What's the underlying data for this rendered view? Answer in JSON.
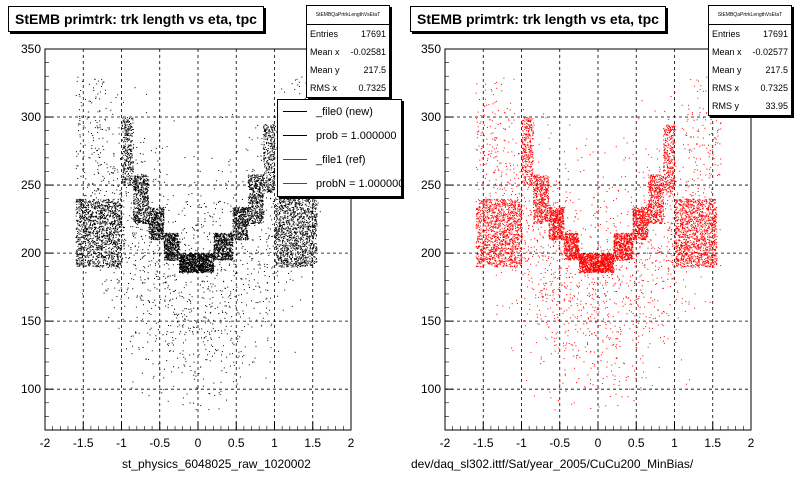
{
  "chart_data": [
    {
      "type": "scatter",
      "title": "StEMB primtrk: trk length vs eta, tpc",
      "xlabel": "st_physics_6048025_raw_1020002",
      "ylabel": "",
      "xlim": [
        -2,
        2
      ],
      "ylim": [
        70,
        350
      ],
      "xticks": [
        "-2",
        "-1.5",
        "-1",
        "-0.5",
        "0",
        "0.5",
        "1",
        "1.5",
        "2"
      ],
      "yticks": [
        "100",
        "150",
        "200",
        "250",
        "300",
        "350"
      ],
      "grid": true,
      "marker_color": "#000000",
      "stats": {
        "name": "StEMBQaPrtrkLengthVsEtaT",
        "rows": [
          {
            "label": "Entries",
            "value": "17691"
          },
          {
            "label": "Mean x",
            "value": "-0.02581"
          },
          {
            "label": "Mean y",
            "value": "217.5"
          },
          {
            "label": "RMS x",
            "value": "0.7325"
          }
        ]
      },
      "legend": [
        {
          "label": "_file0 (new)",
          "color": "#000000"
        },
        {
          "label": "prob = 1.000000",
          "color": "#000000"
        },
        {
          "label": "_file1 (ref)",
          "color": "#ff0000"
        },
        {
          "label": "probN = 1.000000",
          "color": "#ff0000"
        }
      ],
      "legend_position": "top-right",
      "band_profile": [
        {
          "x": [
            -1.6,
            -1.0
          ],
          "y_center": 215,
          "y_half_width": 25
        },
        {
          "x": [
            -1.0,
            -0.85
          ],
          "y_center": 275,
          "y_half_width": 25
        },
        {
          "x": [
            -0.85,
            -0.65
          ],
          "y_center": 240,
          "y_half_width": 18
        },
        {
          "x": [
            -0.65,
            -0.45
          ],
          "y_center": 222,
          "y_half_width": 12
        },
        {
          "x": [
            -0.45,
            -0.25
          ],
          "y_center": 205,
          "y_half_width": 10
        },
        {
          "x": [
            -0.25,
            0.2
          ],
          "y_center": 193,
          "y_half_width": 7
        },
        {
          "x": [
            0.2,
            0.45
          ],
          "y_center": 205,
          "y_half_width": 10
        },
        {
          "x": [
            0.45,
            0.65
          ],
          "y_center": 222,
          "y_half_width": 12
        },
        {
          "x": [
            0.65,
            0.85
          ],
          "y_center": 240,
          "y_half_width": 18
        },
        {
          "x": [
            0.85,
            1.0
          ],
          "y_center": 270,
          "y_half_width": 25
        },
        {
          "x": [
            1.0,
            1.55
          ],
          "y_center": 215,
          "y_half_width": 25
        }
      ],
      "entries": 17691
    },
    {
      "type": "scatter",
      "title": "StEMB primtrk: trk length vs eta, tpc",
      "xlabel": "dev/daq_sl302.ittf/Sat/year_2005/CuCu200_MinBias/",
      "ylabel": "",
      "xlim": [
        -2,
        2
      ],
      "ylim": [
        70,
        350
      ],
      "xticks": [
        "-2",
        "-1.5",
        "-1",
        "-0.5",
        "0",
        "0.5",
        "1",
        "1.5",
        "2"
      ],
      "yticks": [
        "100",
        "150",
        "200",
        "250",
        "300",
        "350"
      ],
      "grid": true,
      "marker_color": "#ff0000",
      "stats": {
        "name": "StEMBQaPrtrkLengthVsEtaT",
        "rows": [
          {
            "label": "Entries",
            "value": "17691"
          },
          {
            "label": "Mean x",
            "value": "-0.02577"
          },
          {
            "label": "Mean y",
            "value": "217.5"
          },
          {
            "label": "RMS x",
            "value": "0.7325"
          },
          {
            "label": "RMS y",
            "value": "33.95"
          }
        ]
      },
      "band_profile": [
        {
          "x": [
            -1.6,
            -1.0
          ],
          "y_center": 215,
          "y_half_width": 25
        },
        {
          "x": [
            -1.0,
            -0.85
          ],
          "y_center": 275,
          "y_half_width": 25
        },
        {
          "x": [
            -0.85,
            -0.65
          ],
          "y_center": 240,
          "y_half_width": 18
        },
        {
          "x": [
            -0.65,
            -0.45
          ],
          "y_center": 222,
          "y_half_width": 12
        },
        {
          "x": [
            -0.45,
            -0.25
          ],
          "y_center": 205,
          "y_half_width": 10
        },
        {
          "x": [
            -0.25,
            0.2
          ],
          "y_center": 193,
          "y_half_width": 7
        },
        {
          "x": [
            0.2,
            0.45
          ],
          "y_center": 205,
          "y_half_width": 10
        },
        {
          "x": [
            0.45,
            0.65
          ],
          "y_center": 222,
          "y_half_width": 12
        },
        {
          "x": [
            0.65,
            0.85
          ],
          "y_center": 240,
          "y_half_width": 18
        },
        {
          "x": [
            0.85,
            1.0
          ],
          "y_center": 270,
          "y_half_width": 25
        },
        {
          "x": [
            1.0,
            1.55
          ],
          "y_center": 215,
          "y_half_width": 25
        }
      ],
      "entries": 17691
    }
  ]
}
